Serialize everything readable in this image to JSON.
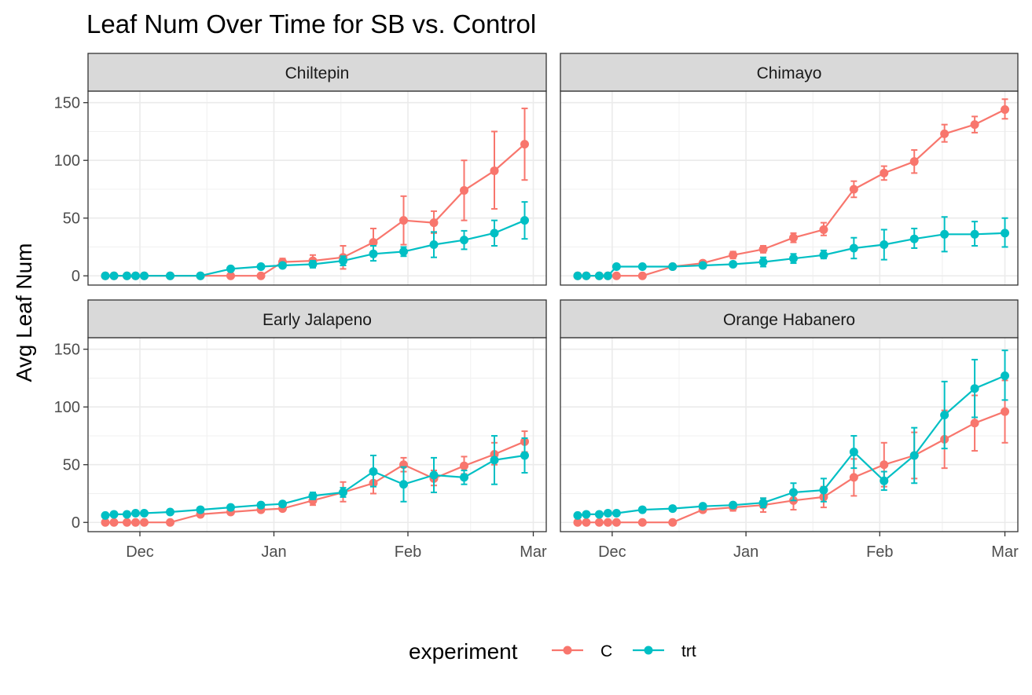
{
  "chart_data": {
    "type": "line",
    "title": "Leaf Num Over Time for SB vs. Control",
    "ylabel": "Avg Leaf Num",
    "xlabel": "",
    "x_tick_labels": [
      "Dec",
      "Jan",
      "Feb",
      "Mar"
    ],
    "x_tick_dates": [
      "2023-12-01",
      "2024-01-01",
      "2024-02-01",
      "2024-03-01"
    ],
    "y_ticks": [
      0,
      50,
      100,
      150
    ],
    "ylim": [
      -8,
      160
    ],
    "legend": {
      "title": "experiment",
      "position": "bottom",
      "entries": [
        {
          "label": "C",
          "color": "#F8766D"
        },
        {
          "label": "trt",
          "color": "#00BFC4"
        }
      ]
    },
    "facets": [
      {
        "name": "Chiltepin",
        "xlim": [
          "2023-11-19",
          "2024-03-04"
        ],
        "series": [
          {
            "name": "C",
            "points": [
              {
                "x": "2023-11-23",
                "y": 0
              },
              {
                "x": "2023-11-25",
                "y": 0
              },
              {
                "x": "2023-11-28",
                "y": 0
              },
              {
                "x": "2023-11-30",
                "y": 0
              },
              {
                "x": "2023-12-02",
                "y": 0
              },
              {
                "x": "2023-12-08",
                "y": 0
              },
              {
                "x": "2023-12-15",
                "y": 0
              },
              {
                "x": "2023-12-22",
                "y": 0
              },
              {
                "x": "2023-12-29",
                "y": 0
              },
              {
                "x": "2024-01-03",
                "y": 12,
                "lo": 9,
                "hi": 15
              },
              {
                "x": "2024-01-10",
                "y": 13,
                "lo": 8,
                "hi": 18
              },
              {
                "x": "2024-01-17",
                "y": 16,
                "lo": 6,
                "hi": 26
              },
              {
                "x": "2024-01-24",
                "y": 29,
                "lo": 17,
                "hi": 41
              },
              {
                "x": "2024-01-31",
                "y": 48,
                "lo": 27,
                "hi": 69
              },
              {
                "x": "2024-02-07",
                "y": 46,
                "lo": 37,
                "hi": 56
              },
              {
                "x": "2024-02-14",
                "y": 74,
                "lo": 48,
                "hi": 100
              },
              {
                "x": "2024-02-21",
                "y": 91,
                "lo": 58,
                "hi": 125
              },
              {
                "x": "2024-02-28",
                "y": 114,
                "lo": 83,
                "hi": 145
              }
            ]
          },
          {
            "name": "trt",
            "points": [
              {
                "x": "2023-11-23",
                "y": 0
              },
              {
                "x": "2023-11-25",
                "y": 0
              },
              {
                "x": "2023-11-28",
                "y": 0
              },
              {
                "x": "2023-11-30",
                "y": 0
              },
              {
                "x": "2023-12-02",
                "y": 0
              },
              {
                "x": "2023-12-08",
                "y": 0
              },
              {
                "x": "2023-12-15",
                "y": 0
              },
              {
                "x": "2023-12-22",
                "y": 6
              },
              {
                "x": "2023-12-29",
                "y": 8
              },
              {
                "x": "2024-01-03",
                "y": 9,
                "lo": 7,
                "hi": 11
              },
              {
                "x": "2024-01-10",
                "y": 10,
                "lo": 7,
                "hi": 13
              },
              {
                "x": "2024-01-17",
                "y": 13,
                "lo": 9,
                "hi": 17
              },
              {
                "x": "2024-01-24",
                "y": 19,
                "lo": 13,
                "hi": 26
              },
              {
                "x": "2024-01-31",
                "y": 21,
                "lo": 17,
                "hi": 25
              },
              {
                "x": "2024-02-07",
                "y": 27,
                "lo": 16,
                "hi": 38
              },
              {
                "x": "2024-02-14",
                "y": 31,
                "lo": 23,
                "hi": 39
              },
              {
                "x": "2024-02-21",
                "y": 37,
                "lo": 26,
                "hi": 48
              },
              {
                "x": "2024-02-28",
                "y": 48,
                "lo": 32,
                "hi": 64
              }
            ]
          }
        ]
      },
      {
        "name": "Chimayo",
        "xlim": [
          "2023-11-19",
          "2024-03-04"
        ],
        "series": [
          {
            "name": "C",
            "points": [
              {
                "x": "2023-11-23",
                "y": 0
              },
              {
                "x": "2023-11-25",
                "y": 0
              },
              {
                "x": "2023-11-28",
                "y": 0
              },
              {
                "x": "2023-11-30",
                "y": 0
              },
              {
                "x": "2023-12-02",
                "y": 0
              },
              {
                "x": "2023-12-08",
                "y": 0
              },
              {
                "x": "2023-12-15",
                "y": 8,
                "lo": 6,
                "hi": 10
              },
              {
                "x": "2023-12-22",
                "y": 11,
                "lo": 9,
                "hi": 13
              },
              {
                "x": "2023-12-29",
                "y": 18,
                "lo": 15,
                "hi": 21
              },
              {
                "x": "2024-01-05",
                "y": 23,
                "lo": 20,
                "hi": 26
              },
              {
                "x": "2024-01-12",
                "y": 33,
                "lo": 29,
                "hi": 37
              },
              {
                "x": "2024-01-19",
                "y": 40,
                "lo": 35,
                "hi": 46
              },
              {
                "x": "2024-01-26",
                "y": 75,
                "lo": 68,
                "hi": 82
              },
              {
                "x": "2024-02-02",
                "y": 89,
                "lo": 83,
                "hi": 95
              },
              {
                "x": "2024-02-09",
                "y": 99,
                "lo": 89,
                "hi": 109
              },
              {
                "x": "2024-02-16",
                "y": 123,
                "lo": 116,
                "hi": 131
              },
              {
                "x": "2024-02-23",
                "y": 131,
                "lo": 124,
                "hi": 138
              },
              {
                "x": "2024-03-01",
                "y": 144,
                "lo": 136,
                "hi": 153
              }
            ]
          },
          {
            "name": "trt",
            "points": [
              {
                "x": "2023-11-23",
                "y": 0
              },
              {
                "x": "2023-11-25",
                "y": 0
              },
              {
                "x": "2023-11-28",
                "y": 0
              },
              {
                "x": "2023-11-30",
                "y": 0
              },
              {
                "x": "2023-12-02",
                "y": 8
              },
              {
                "x": "2023-12-08",
                "y": 8
              },
              {
                "x": "2023-12-15",
                "y": 8,
                "lo": 6,
                "hi": 10
              },
              {
                "x": "2023-12-22",
                "y": 9,
                "lo": 7,
                "hi": 11
              },
              {
                "x": "2023-12-29",
                "y": 10,
                "lo": 8,
                "hi": 12
              },
              {
                "x": "2024-01-05",
                "y": 12,
                "lo": 8,
                "hi": 16
              },
              {
                "x": "2024-01-12",
                "y": 15,
                "lo": 11,
                "hi": 19
              },
              {
                "x": "2024-01-19",
                "y": 18,
                "lo": 15,
                "hi": 22
              },
              {
                "x": "2024-01-26",
                "y": 24,
                "lo": 15,
                "hi": 33
              },
              {
                "x": "2024-02-02",
                "y": 27,
                "lo": 14,
                "hi": 40
              },
              {
                "x": "2024-02-09",
                "y": 32,
                "lo": 24,
                "hi": 41
              },
              {
                "x": "2024-02-16",
                "y": 36,
                "lo": 21,
                "hi": 51
              },
              {
                "x": "2024-02-23",
                "y": 36,
                "lo": 26,
                "hi": 47
              },
              {
                "x": "2024-03-01",
                "y": 37,
                "lo": 25,
                "hi": 50
              }
            ]
          }
        ]
      },
      {
        "name": "Early Jalapeno",
        "xlim": [
          "2023-11-19",
          "2024-03-04"
        ],
        "series": [
          {
            "name": "C",
            "points": [
              {
                "x": "2023-11-23",
                "y": 0
              },
              {
                "x": "2023-11-25",
                "y": 0
              },
              {
                "x": "2023-11-28",
                "y": 0
              },
              {
                "x": "2023-11-30",
                "y": 0
              },
              {
                "x": "2023-12-02",
                "y": 0
              },
              {
                "x": "2023-12-08",
                "y": 0
              },
              {
                "x": "2023-12-15",
                "y": 7,
                "lo": 5,
                "hi": 9
              },
              {
                "x": "2023-12-22",
                "y": 9,
                "lo": 7,
                "hi": 11
              },
              {
                "x": "2023-12-29",
                "y": 11,
                "lo": 9,
                "hi": 13
              },
              {
                "x": "2024-01-03",
                "y": 12,
                "lo": 10,
                "hi": 14
              },
              {
                "x": "2024-01-10",
                "y": 19,
                "lo": 15,
                "hi": 23
              },
              {
                "x": "2024-01-17",
                "y": 26,
                "lo": 18,
                "hi": 35
              },
              {
                "x": "2024-01-24",
                "y": 34,
                "lo": 25,
                "hi": 43
              },
              {
                "x": "2024-01-31",
                "y": 50,
                "lo": 44,
                "hi": 56
              },
              {
                "x": "2024-02-07",
                "y": 38,
                "lo": 32,
                "hi": 45
              },
              {
                "x": "2024-02-14",
                "y": 49,
                "lo": 42,
                "hi": 57
              },
              {
                "x": "2024-02-21",
                "y": 59,
                "lo": 50,
                "hi": 69
              },
              {
                "x": "2024-02-28",
                "y": 70,
                "lo": 61,
                "hi": 79
              }
            ]
          },
          {
            "name": "trt",
            "points": [
              {
                "x": "2023-11-23",
                "y": 6
              },
              {
                "x": "2023-11-25",
                "y": 7
              },
              {
                "x": "2023-11-28",
                "y": 7
              },
              {
                "x": "2023-11-30",
                "y": 8
              },
              {
                "x": "2023-12-02",
                "y": 8
              },
              {
                "x": "2023-12-08",
                "y": 9
              },
              {
                "x": "2023-12-15",
                "y": 11,
                "lo": 9,
                "hi": 13
              },
              {
                "x": "2023-12-22",
                "y": 13,
                "lo": 11,
                "hi": 15
              },
              {
                "x": "2023-12-29",
                "y": 15,
                "lo": 13,
                "hi": 17
              },
              {
                "x": "2024-01-03",
                "y": 16,
                "lo": 14,
                "hi": 18
              },
              {
                "x": "2024-01-10",
                "y": 23,
                "lo": 20,
                "hi": 26
              },
              {
                "x": "2024-01-17",
                "y": 26,
                "lo": 22,
                "hi": 30
              },
              {
                "x": "2024-01-24",
                "y": 44,
                "lo": 31,
                "hi": 58
              },
              {
                "x": "2024-01-31",
                "y": 33,
                "lo": 18,
                "hi": 48
              },
              {
                "x": "2024-02-07",
                "y": 41,
                "lo": 26,
                "hi": 56
              },
              {
                "x": "2024-02-14",
                "y": 39,
                "lo": 33,
                "hi": 45
              },
              {
                "x": "2024-02-21",
                "y": 54,
                "lo": 33,
                "hi": 75
              },
              {
                "x": "2024-02-28",
                "y": 58,
                "lo": 43,
                "hi": 73
              }
            ]
          }
        ]
      },
      {
        "name": "Orange Habanero",
        "xlim": [
          "2023-11-19",
          "2024-03-04"
        ],
        "series": [
          {
            "name": "C",
            "points": [
              {
                "x": "2023-11-23",
                "y": 0
              },
              {
                "x": "2023-11-25",
                "y": 0
              },
              {
                "x": "2023-11-28",
                "y": 0
              },
              {
                "x": "2023-11-30",
                "y": 0
              },
              {
                "x": "2023-12-02",
                "y": 0
              },
              {
                "x": "2023-12-08",
                "y": 0
              },
              {
                "x": "2023-12-15",
                "y": 0
              },
              {
                "x": "2023-12-22",
                "y": 11,
                "lo": 9,
                "hi": 13
              },
              {
                "x": "2023-12-29",
                "y": 13,
                "lo": 10,
                "hi": 16
              },
              {
                "x": "2024-01-05",
                "y": 15,
                "lo": 9,
                "hi": 21
              },
              {
                "x": "2024-01-12",
                "y": 19,
                "lo": 11,
                "hi": 28
              },
              {
                "x": "2024-01-19",
                "y": 22,
                "lo": 13,
                "hi": 31
              },
              {
                "x": "2024-01-26",
                "y": 39,
                "lo": 23,
                "hi": 55
              },
              {
                "x": "2024-02-02",
                "y": 50,
                "lo": 31,
                "hi": 69
              },
              {
                "x": "2024-02-09",
                "y": 58,
                "lo": 38,
                "hi": 78
              },
              {
                "x": "2024-02-16",
                "y": 72,
                "lo": 47,
                "hi": 97
              },
              {
                "x": "2024-02-23",
                "y": 86,
                "lo": 62,
                "hi": 110
              },
              {
                "x": "2024-03-01",
                "y": 96,
                "lo": 69,
                "hi": 123
              }
            ]
          },
          {
            "name": "trt",
            "points": [
              {
                "x": "2023-11-23",
                "y": 6
              },
              {
                "x": "2023-11-25",
                "y": 7
              },
              {
                "x": "2023-11-28",
                "y": 7
              },
              {
                "x": "2023-11-30",
                "y": 8
              },
              {
                "x": "2023-12-02",
                "y": 8
              },
              {
                "x": "2023-12-08",
                "y": 11
              },
              {
                "x": "2023-12-15",
                "y": 12,
                "lo": 10,
                "hi": 14
              },
              {
                "x": "2023-12-22",
                "y": 14,
                "lo": 12,
                "hi": 16
              },
              {
                "x": "2023-12-29",
                "y": 15,
                "lo": 13,
                "hi": 17
              },
              {
                "x": "2024-01-05",
                "y": 17,
                "lo": 13,
                "hi": 21
              },
              {
                "x": "2024-01-12",
                "y": 26,
                "lo": 19,
                "hi": 34
              },
              {
                "x": "2024-01-19",
                "y": 28,
                "lo": 18,
                "hi": 38
              },
              {
                "x": "2024-01-26",
                "y": 61,
                "lo": 47,
                "hi": 75
              },
              {
                "x": "2024-02-02",
                "y": 36,
                "lo": 28,
                "hi": 44
              },
              {
                "x": "2024-02-09",
                "y": 58,
                "lo": 34,
                "hi": 82
              },
              {
                "x": "2024-02-16",
                "y": 93,
                "lo": 64,
                "hi": 122
              },
              {
                "x": "2024-02-23",
                "y": 116,
                "lo": 91,
                "hi": 141
              },
              {
                "x": "2024-03-01",
                "y": 127,
                "lo": 106,
                "hi": 149
              }
            ]
          }
        ]
      }
    ]
  }
}
